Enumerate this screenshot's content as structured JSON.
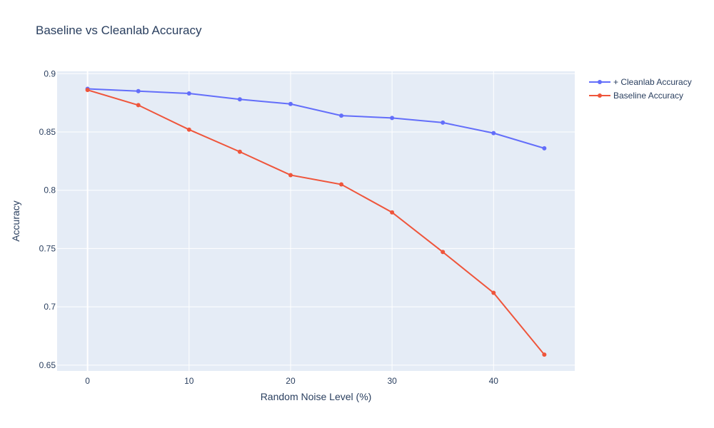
{
  "chart_data": {
    "type": "line",
    "title": "Baseline vs Cleanlab Accuracy",
    "xlabel": "Random Noise Level (%)",
    "ylabel": "Accuracy",
    "x": [
      0,
      5,
      10,
      15,
      20,
      25,
      30,
      35,
      40,
      45
    ],
    "xlim": [
      -3,
      48
    ],
    "ylim": [
      0.645,
      0.902
    ],
    "xticks": [
      0,
      10,
      20,
      30,
      40
    ],
    "yticks": [
      0.65,
      0.7,
      0.75,
      0.8,
      0.85,
      0.9
    ],
    "ytick_labels": [
      "0.65",
      "0.7",
      "0.75",
      "0.8",
      "0.85",
      "0.9"
    ],
    "grid": true,
    "legend_position": "top-right",
    "plot_background": "#e5ecf6",
    "series": [
      {
        "name": "+ Cleanlab Accuracy",
        "color": "#636efa",
        "values": [
          0.887,
          0.885,
          0.883,
          0.878,
          0.874,
          0.864,
          0.862,
          0.858,
          0.849,
          0.836
        ]
      },
      {
        "name": "Baseline Accuracy",
        "color": "#ef553b",
        "values": [
          0.886,
          0.873,
          0.852,
          0.833,
          0.813,
          0.805,
          0.781,
          0.747,
          0.712,
          0.659
        ]
      }
    ]
  }
}
